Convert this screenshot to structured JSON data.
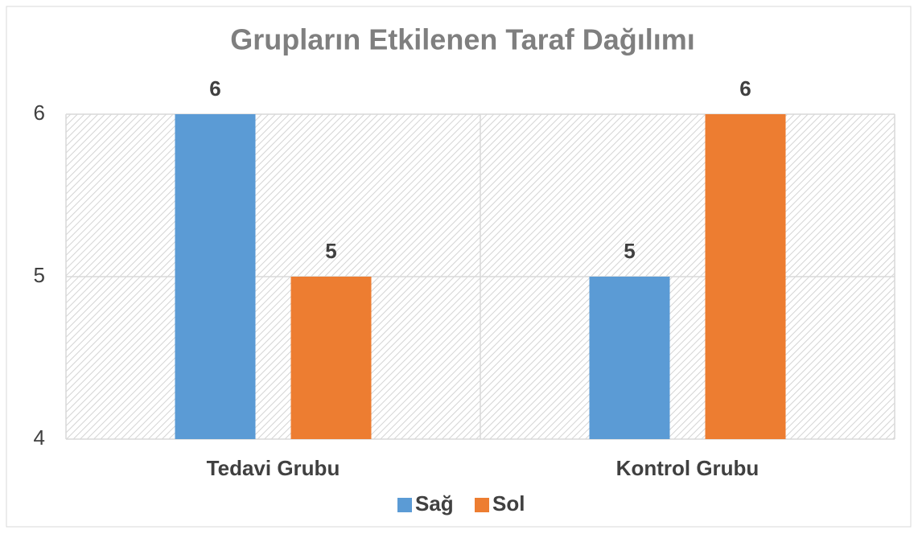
{
  "chart_data": {
    "type": "bar",
    "title": "Grupların Etkilenen Taraf Dağılımı",
    "categories": [
      "Tedavi Grubu",
      "Kontrol Grubu"
    ],
    "series": [
      {
        "name": "Sağ",
        "color": "#5b9bd5",
        "values": [
          6,
          5
        ]
      },
      {
        "name": "Sol",
        "color": "#ed7d31",
        "values": [
          5,
          6
        ]
      }
    ],
    "ylim": [
      4,
      6
    ],
    "yticks": [
      4,
      5,
      6
    ],
    "grid": true,
    "legend": "bottom"
  }
}
